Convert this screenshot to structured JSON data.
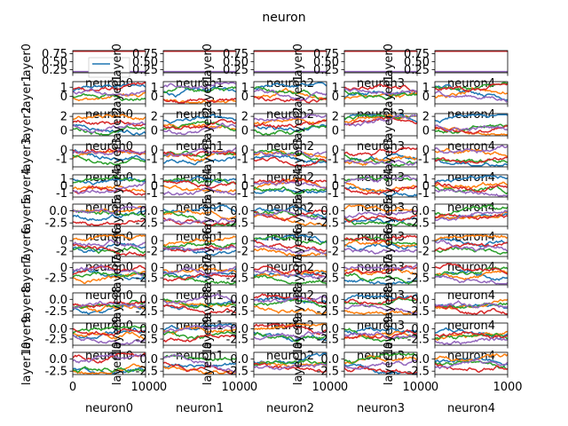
{
  "chart_data": {
    "type": "line",
    "title": "neuron",
    "rows": [
      "layer0",
      "layer1",
      "layer2",
      "layer3",
      "layer4",
      "layer5",
      "layer6",
      "layer7",
      "layer8",
      "layer9",
      "layer10"
    ],
    "columns": [
      "neuron0",
      "neuron1",
      "neuron2",
      "neuron3",
      "neuron4"
    ],
    "x_range": [
      0,
      1000
    ],
    "x_ticks": [
      "0",
      "1000"
    ],
    "colors": [
      "#1f77b4",
      "#ff7f0e",
      "#2ca02c",
      "#d62728",
      "#9467bd"
    ],
    "legend": "upper-left of first panel, single unlabeled blue line entry",
    "row_yticks": [
      [
        "0.75",
        "0.50",
        "0.25"
      ],
      [
        "1",
        "0"
      ],
      [
        "2",
        "0"
      ],
      [
        "0",
        "-1"
      ],
      [
        "1",
        "0",
        "-1"
      ],
      [
        "0.0",
        "-2.5"
      ],
      [
        "0",
        "-2"
      ],
      [
        "0",
        "-2.5"
      ],
      [
        "0.0",
        "-2.5"
      ],
      [
        "0.0",
        "-2.5"
      ],
      [
        "0.0",
        "-2.5"
      ]
    ],
    "row_ylim": [
      [
        0.15,
        0.85
      ],
      [
        -0.8,
        1.6
      ],
      [
        -0.8,
        2.4
      ],
      [
        -1.9,
        0.6
      ],
      [
        -1.6,
        1.6
      ],
      [
        -3.2,
        1.4
      ],
      [
        -3.0,
        1.2
      ],
      [
        -4.2,
        1.2
      ],
      [
        -3.4,
        1.4
      ],
      [
        -4.0,
        1.4
      ],
      [
        -3.2,
        1.4
      ]
    ],
    "series_per_panel": 5,
    "points_per_series": 60
  }
}
